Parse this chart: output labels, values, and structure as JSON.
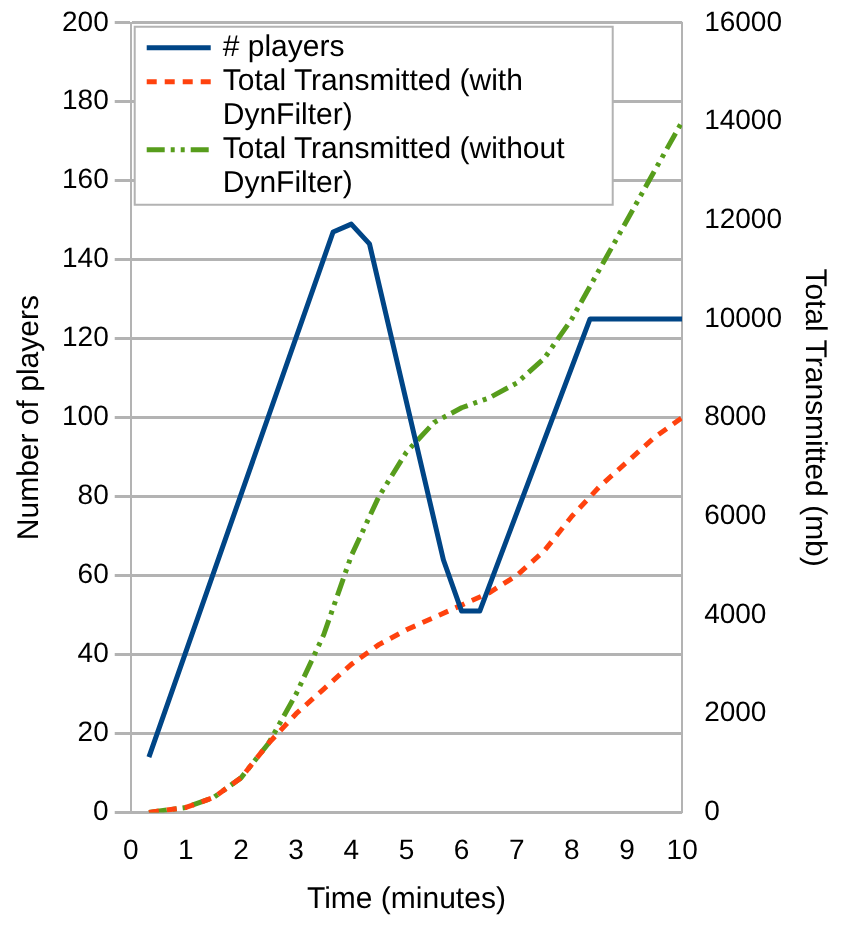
{
  "chart_data": {
    "type": "line",
    "xlabel": "Time (minutes)",
    "ylabel": "Number of players",
    "y2label": "Total Transmitted (mb)",
    "xlim": [
      0,
      10
    ],
    "xticks": [
      0,
      1,
      2,
      3,
      4,
      5,
      6,
      7,
      8,
      9,
      10
    ],
    "ylim": [
      0,
      200
    ],
    "yticks": [
      0,
      20,
      40,
      60,
      80,
      100,
      120,
      140,
      160,
      180,
      200
    ],
    "y2lim": [
      0,
      16000
    ],
    "y2ticks": [
      0,
      2000,
      4000,
      6000,
      8000,
      10000,
      12000,
      14000,
      16000
    ],
    "grid": "y",
    "legend": "top left",
    "marker": "none",
    "series": [
      {
        "name": "# players",
        "color": "#004586",
        "line_style": "solid",
        "x": [
          0.33,
          3.67,
          4,
          4.33,
          5.67,
          6,
          6.33,
          8.33,
          10
        ],
        "values": [
          14,
          147,
          149,
          144,
          64,
          51,
          51,
          125,
          125
        ]
      },
      {
        "name": "Total Transmitted (with DynFilter)",
        "color": "#ff420e",
        "line_style": "dashed",
        "axis": "y2",
        "x": [
          0.33,
          1,
          1.5,
          2,
          2.5,
          3,
          3.5,
          4,
          4.5,
          5,
          5.5,
          6,
          6.5,
          7,
          7.5,
          8,
          8.5,
          9,
          9.5,
          10
        ],
        "values": [
          0,
          100,
          300,
          700,
          1400,
          2000,
          2500,
          3000,
          3400,
          3700,
          3950,
          4200,
          4450,
          4800,
          5300,
          6000,
          6600,
          7100,
          7600,
          8000
        ]
      },
      {
        "name": "Total Transmitted (without DynFilter)",
        "color": "#579d1c",
        "line_style": "dotted",
        "axis": "y2",
        "x": [
          0.33,
          1,
          1.5,
          2,
          2.5,
          3,
          3.5,
          4,
          4.5,
          5,
          5.5,
          6,
          6.5,
          7,
          7.5,
          8,
          8.5,
          9,
          9.5,
          10
        ],
        "values": [
          0,
          100,
          300,
          700,
          1400,
          2400,
          3600,
          5200,
          6400,
          7300,
          7900,
          8200,
          8400,
          8700,
          9200,
          10000,
          11000,
          12000,
          13000,
          14000
        ]
      }
    ]
  }
}
